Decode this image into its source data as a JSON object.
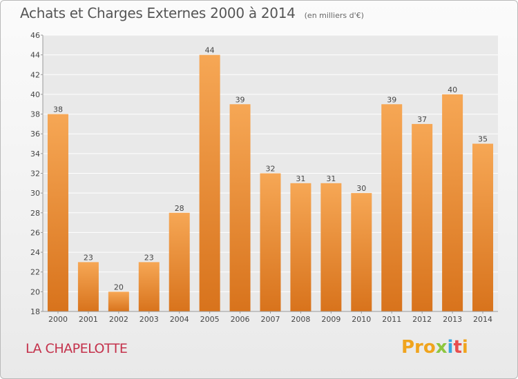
{
  "header": {
    "title": "Achats et Charges Externes 2000 à 2014",
    "subtitle": "(en milliers d'€)"
  },
  "footer": {
    "location": "LA CHAPELOTTE",
    "brand_parts": [
      "Pro",
      "x",
      "i",
      "t",
      "i"
    ],
    "brand_colors": [
      "#f0a41e",
      "#8dc63f",
      "#3aa6dd",
      "#e84e4e",
      "#f0a41e"
    ]
  },
  "colors": {
    "bar_light": "#f6a755",
    "bar_dark": "#d8731c",
    "plot_bg": "#e9e9e9",
    "grid": "#ffffff",
    "axis_text": "#444444",
    "title_text": "#555555",
    "location_text": "#c4314b"
  },
  "chart_data": {
    "type": "bar",
    "title": "Achats et Charges Externes 2000 à 2014",
    "subtitle": "(en milliers d'€)",
    "xlabel": "",
    "ylabel": "",
    "categories": [
      "2000",
      "2001",
      "2002",
      "2003",
      "2004",
      "2005",
      "2006",
      "2007",
      "2008",
      "2009",
      "2010",
      "2011",
      "2012",
      "2013",
      "2014"
    ],
    "values": [
      38,
      23,
      20,
      23,
      28,
      44,
      39,
      32,
      31,
      31,
      30,
      39,
      37,
      40,
      35
    ],
    "ylim": [
      18,
      46
    ],
    "yticks": [
      18,
      20,
      22,
      24,
      26,
      28,
      30,
      32,
      34,
      36,
      38,
      40,
      42,
      44,
      46
    ],
    "grid": true,
    "data_labels": true
  }
}
